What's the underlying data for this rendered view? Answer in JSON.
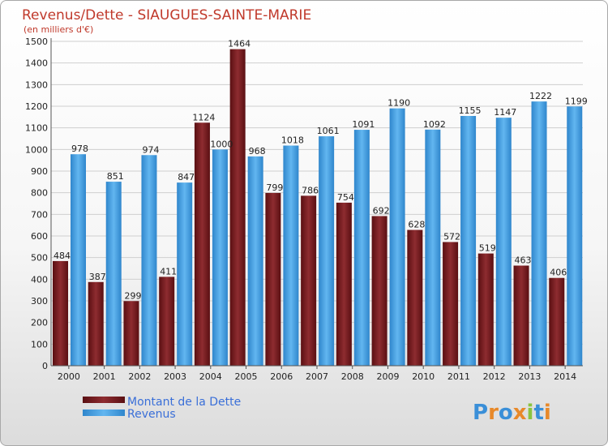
{
  "chart_data": {
    "type": "bar",
    "title": "Revenus/Dette - SIAUGUES-SAINTE-MARIE",
    "subtitle": "(en milliers d'€)",
    "categories": [
      "2000",
      "2001",
      "2002",
      "2003",
      "2004",
      "2005",
      "2006",
      "2007",
      "2008",
      "2009",
      "2010",
      "2011",
      "2012",
      "2013",
      "2014"
    ],
    "series": [
      {
        "name": "Montant de la Dette",
        "color": "#7a1f22",
        "values": [
          484,
          387,
          299,
          411,
          1124,
          1464,
          799,
          786,
          754,
          692,
          628,
          572,
          519,
          463,
          406
        ]
      },
      {
        "name": "Revenus",
        "color": "#4aa3e6",
        "values": [
          978,
          851,
          974,
          847,
          1000,
          968,
          1018,
          1061,
          1091,
          1190,
          1092,
          1155,
          1147,
          1222,
          1199
        ]
      }
    ],
    "yticks": [
      0,
      100,
      200,
      300,
      400,
      500,
      600,
      700,
      800,
      900,
      1000,
      1100,
      1200,
      1300,
      1400,
      1500
    ],
    "ylim": [
      0,
      1500
    ],
    "grid": true,
    "legend": "bottom-left"
  },
  "logo": {
    "text": "Proxiti",
    "letters": [
      "P",
      "r",
      "o",
      "x",
      "i",
      "t",
      "i"
    ],
    "colors": [
      "#3a8fd8",
      "#e8892a",
      "#3a8fd8",
      "#e8892a",
      "#8ac43f",
      "#3a8fd8",
      "#e8892a"
    ]
  }
}
